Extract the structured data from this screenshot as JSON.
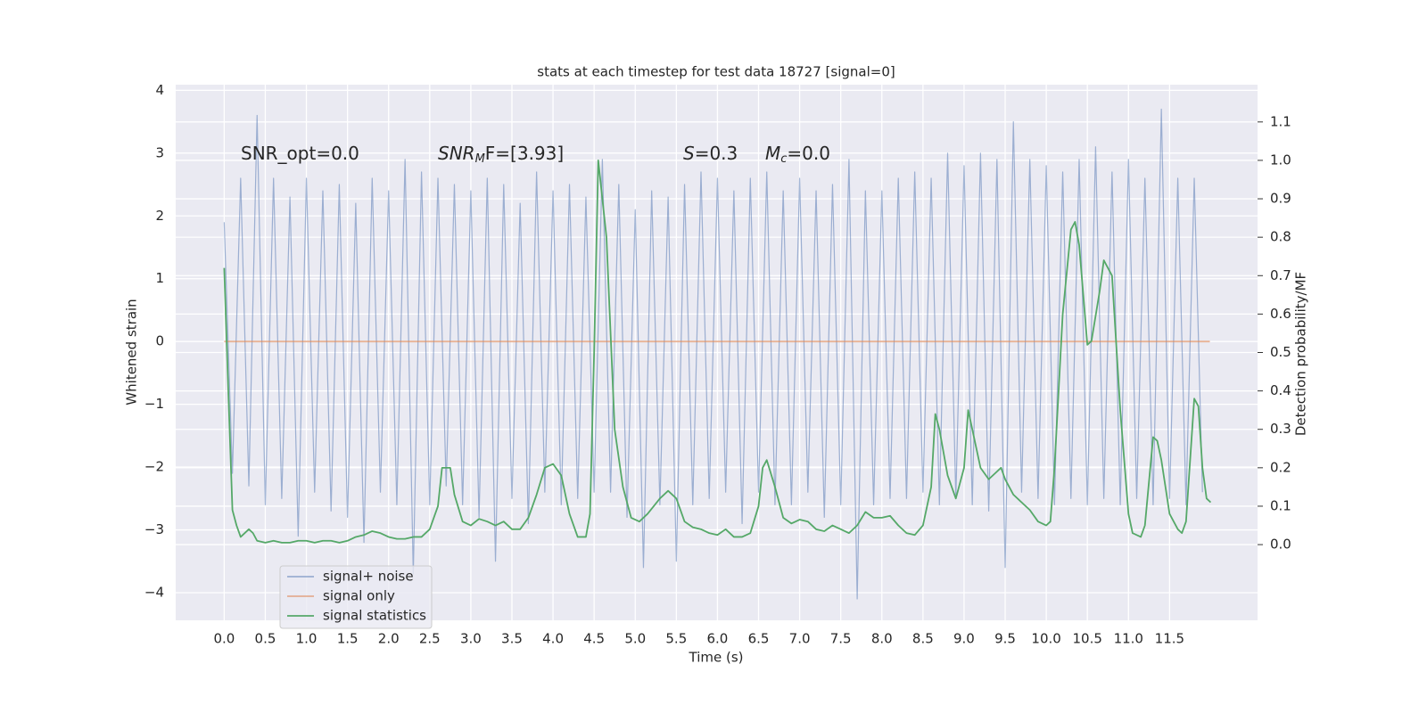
{
  "chart_data": {
    "type": "line",
    "title": "stats at each timestep for test data 18727 [signal=0]",
    "x_label": "Time (s)",
    "y_label": "Whitened strain",
    "y2_label": "Detection probability/MF",
    "annotations": [
      {
        "text": "SNR_opt=0.0"
      },
      {
        "italic": "SNR",
        "sub": "M",
        "rest": "F=[3.93]"
      },
      {
        "italic": "S",
        "rest": "=0.3"
      },
      {
        "italic": "M",
        "sub": "c",
        "rest": "=0.0"
      }
    ],
    "xlim": [
      -0.59,
      12.57
    ],
    "ylim": [
      -4.44,
      4.09
    ],
    "y2lim": [
      -0.197,
      1.197
    ],
    "xticks": [
      {
        "value": 0,
        "label": "0.0"
      },
      0.5,
      {
        "value": 1,
        "label": "1.0"
      },
      1.5,
      {
        "value": 2,
        "label": "2.0"
      },
      2.5,
      {
        "value": 3,
        "label": "3.0"
      },
      3.5,
      {
        "value": 4,
        "label": "4.0"
      },
      4.5,
      {
        "value": 5,
        "label": "5.0"
      },
      5.5,
      {
        "value": 6,
        "label": "6.0"
      },
      6.5,
      {
        "value": 7,
        "label": "7.0"
      },
      7.5,
      {
        "value": 8,
        "label": "8.0"
      },
      8.5,
      {
        "value": 9,
        "label": "9.0"
      },
      9.5,
      {
        "value": 10,
        "label": "10.0"
      },
      10.5,
      {
        "value": 11,
        "label": "11.0"
      },
      11.5
    ],
    "yticks": [
      {
        "value": -4,
        "label": "−4"
      },
      {
        "value": -3,
        "label": "−3"
      },
      {
        "value": -2,
        "label": "−2"
      },
      {
        "value": -1,
        "label": "−1"
      },
      0,
      1,
      2,
      3,
      4
    ],
    "y2ticks": [
      {
        "value": 0,
        "label": "0.0"
      },
      0.1,
      0.2,
      0.3,
      0.4,
      0.5,
      0.6,
      0.7,
      0.8,
      0.9,
      {
        "value": 1,
        "label": "1.0"
      },
      1.1
    ],
    "grid": true,
    "legend": "lower left",
    "series": [
      {
        "name": "signal+ noise",
        "color": "#4c72b0",
        "opacity": 0.5,
        "x": [
          0,
          0.1,
          0.2,
          0.3,
          0.4,
          0.5,
          0.6,
          0.7,
          0.8,
          0.9,
          1.0,
          1.1,
          1.2,
          1.3,
          1.4,
          1.5,
          1.6,
          1.7,
          1.8,
          1.9,
          2.0,
          2.1,
          2.2,
          2.3,
          2.4,
          2.5,
          2.6,
          2.7,
          2.8,
          2.9,
          3.0,
          3.1,
          3.2,
          3.3,
          3.4,
          3.5,
          3.6,
          3.7,
          3.8,
          3.9,
          4.0,
          4.1,
          4.2,
          4.3,
          4.4,
          4.5,
          4.6,
          4.7,
          4.8,
          4.9,
          5.0,
          5.1,
          5.2,
          5.3,
          5.4,
          5.5,
          5.6,
          5.7,
          5.8,
          5.9,
          6.0,
          6.1,
          6.2,
          6.3,
          6.4,
          6.5,
          6.6,
          6.7,
          6.8,
          6.9,
          7.0,
          7.1,
          7.2,
          7.3,
          7.4,
          7.5,
          7.6,
          7.7,
          7.8,
          7.9,
          8.0,
          8.1,
          8.2,
          8.3,
          8.4,
          8.5,
          8.6,
          8.7,
          8.8,
          8.9,
          9.0,
          9.1,
          9.2,
          9.3,
          9.4,
          9.5,
          9.6,
          9.7,
          9.8,
          9.9,
          10.0,
          10.1,
          10.2,
          10.3,
          10.4,
          10.5,
          10.6,
          10.7,
          10.8,
          10.9,
          11.0,
          11.1,
          11.2,
          11.3,
          11.4,
          11.5,
          11.6,
          11.7,
          11.8,
          11.9
        ],
        "values": [
          1.9,
          -2.1,
          2.6,
          -2.3,
          3.6,
          -2.6,
          2.6,
          -2.5,
          2.3,
          -3.1,
          2.6,
          -2.4,
          2.4,
          -2.7,
          2.5,
          -2.8,
          2.2,
          -3.2,
          2.6,
          -2.4,
          2.4,
          -2.6,
          2.9,
          -3.7,
          2.7,
          -2.6,
          2.6,
          -2.3,
          2.5,
          -2.6,
          2.4,
          -2.8,
          2.6,
          -3.5,
          2.5,
          -2.5,
          2.2,
          -2.9,
          2.7,
          -2.4,
          2.4,
          -2.6,
          2.5,
          -2.5,
          2.3,
          -2.4,
          2.9,
          -2.4,
          2.5,
          -2.8,
          2.1,
          -3.6,
          2.4,
          -2.6,
          2.3,
          -3.5,
          2.5,
          -2.6,
          2.7,
          -2.5,
          2.6,
          -2.4,
          2.4,
          -2.9,
          2.6,
          -2.4,
          2.7,
          -2.6,
          2.4,
          -2.6,
          2.6,
          -2.4,
          2.4,
          -2.8,
          2.5,
          -2.6,
          2.9,
          -4.1,
          2.4,
          -2.6,
          2.4,
          -2.5,
          2.6,
          -2.5,
          2.7,
          -2.4,
          2.6,
          -2.6,
          3.0,
          -2.5,
          2.8,
          -2.6,
          3.0,
          -2.7,
          2.9,
          -3.6,
          3.5,
          -2.4,
          2.9,
          -2.5,
          2.8,
          -2.6,
          2.7,
          -2.5,
          2.9,
          -2.6,
          3.1,
          -2.5,
          2.7,
          -2.6,
          2.9,
          -2.5,
          2.6,
          -2.6,
          3.7,
          -2.5,
          2.6,
          -2.6,
          2.6,
          -2.4
        ]
      },
      {
        "name": "signal only",
        "color": "#dd8452",
        "opacity": 0.6,
        "x": [
          0,
          11.99
        ],
        "values": [
          0,
          0
        ]
      },
      {
        "name": "signal statistics",
        "color": "#55a868",
        "opacity": 1,
        "axis": "y2",
        "x": [
          0,
          0.05,
          0.1,
          0.15,
          0.2,
          0.3,
          0.35,
          0.4,
          0.5,
          0.6,
          0.7,
          0.8,
          0.9,
          1.0,
          1.1,
          1.2,
          1.3,
          1.4,
          1.5,
          1.6,
          1.7,
          1.8,
          1.9,
          2.0,
          2.1,
          2.2,
          2.3,
          2.4,
          2.5,
          2.6,
          2.65,
          2.75,
          2.8,
          2.9,
          3.0,
          3.1,
          3.2,
          3.3,
          3.4,
          3.5,
          3.6,
          3.7,
          3.8,
          3.9,
          4.0,
          4.1,
          4.2,
          4.3,
          4.4,
          4.45,
          4.5,
          4.55,
          4.65,
          4.75,
          4.85,
          4.95,
          5.05,
          5.15,
          5.3,
          5.4,
          5.5,
          5.6,
          5.7,
          5.8,
          5.9,
          6.0,
          6.1,
          6.2,
          6.3,
          6.4,
          6.5,
          6.55,
          6.6,
          6.7,
          6.8,
          6.9,
          7.0,
          7.1,
          7.2,
          7.3,
          7.4,
          7.5,
          7.6,
          7.7,
          7.8,
          7.9,
          8.0,
          8.1,
          8.2,
          8.3,
          8.4,
          8.5,
          8.6,
          8.65,
          8.7,
          8.8,
          8.9,
          9.0,
          9.05,
          9.1,
          9.2,
          9.3,
          9.4,
          9.45,
          9.5,
          9.6,
          9.7,
          9.8,
          9.9,
          10.0,
          10.05,
          10.1,
          10.2,
          10.3,
          10.35,
          10.4,
          10.5,
          10.55,
          10.65,
          10.7,
          10.8,
          10.9,
          11.0,
          11.05,
          11.15,
          11.2,
          11.3,
          11.35,
          11.4,
          11.5,
          11.6,
          11.65,
          11.7,
          11.8,
          11.85,
          11.9,
          11.95,
          12.0
        ],
        "values": [
          0.72,
          0.4,
          0.09,
          0.05,
          0.02,
          0.04,
          0.03,
          0.01,
          0.005,
          0.01,
          0.005,
          0.005,
          0.01,
          0.01,
          0.005,
          0.01,
          0.01,
          0.005,
          0.01,
          0.02,
          0.025,
          0.035,
          0.03,
          0.02,
          0.015,
          0.015,
          0.02,
          0.02,
          0.04,
          0.1,
          0.2,
          0.2,
          0.13,
          0.06,
          0.05,
          0.067,
          0.06,
          0.05,
          0.06,
          0.04,
          0.04,
          0.07,
          0.13,
          0.2,
          0.21,
          0.18,
          0.08,
          0.02,
          0.02,
          0.08,
          0.5,
          1.0,
          0.8,
          0.3,
          0.15,
          0.07,
          0.06,
          0.08,
          0.12,
          0.14,
          0.12,
          0.06,
          0.045,
          0.04,
          0.03,
          0.025,
          0.04,
          0.02,
          0.02,
          0.03,
          0.1,
          0.2,
          0.22,
          0.15,
          0.07,
          0.055,
          0.065,
          0.06,
          0.04,
          0.035,
          0.05,
          0.04,
          0.03,
          0.05,
          0.085,
          0.07,
          0.07,
          0.075,
          0.05,
          0.03,
          0.025,
          0.05,
          0.15,
          0.34,
          0.3,
          0.18,
          0.12,
          0.2,
          0.35,
          0.3,
          0.2,
          0.17,
          0.19,
          0.2,
          0.17,
          0.13,
          0.11,
          0.09,
          0.06,
          0.05,
          0.06,
          0.2,
          0.6,
          0.82,
          0.84,
          0.78,
          0.52,
          0.53,
          0.66,
          0.74,
          0.7,
          0.35,
          0.08,
          0.03,
          0.02,
          0.05,
          0.28,
          0.27,
          0.22,
          0.08,
          0.04,
          0.03,
          0.06,
          0.38,
          0.36,
          0.2,
          0.12,
          0.11
        ]
      }
    ]
  }
}
